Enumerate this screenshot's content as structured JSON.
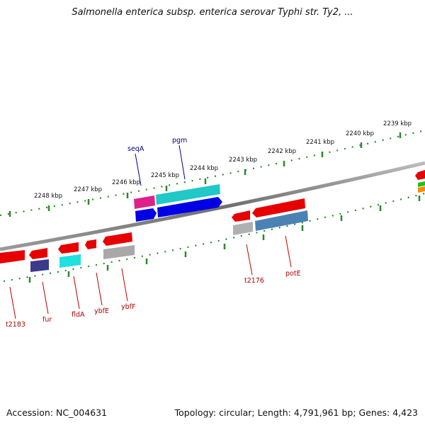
{
  "title": "Salmonella enterica subsp. enterica serovar Typhi str. Ty2, ...",
  "accession": "Accession: NC_004631",
  "topology": "Topology: circular; Length: 4,791,961 bp; Genes: 4,423",
  "colors": {
    "backbone": "#808080",
    "tick": "#2a8a2a",
    "gene_label": "#b00000",
    "feature_label": "#00008b"
  },
  "ticks": [
    "2239 kbp",
    "2240 kbp",
    "2241 kbp",
    "2242 kbp",
    "2243 kbp",
    "2244 kbp",
    "2245 kbp",
    "2246 kbp",
    "2247 kbp",
    "2248 kbp"
  ],
  "gene_labels": [
    "t2183",
    "fur",
    "fldA",
    "ybfE",
    "ybfF",
    "t2176",
    "potE"
  ],
  "feature_labels": [
    "seqA",
    "pgm"
  ]
}
